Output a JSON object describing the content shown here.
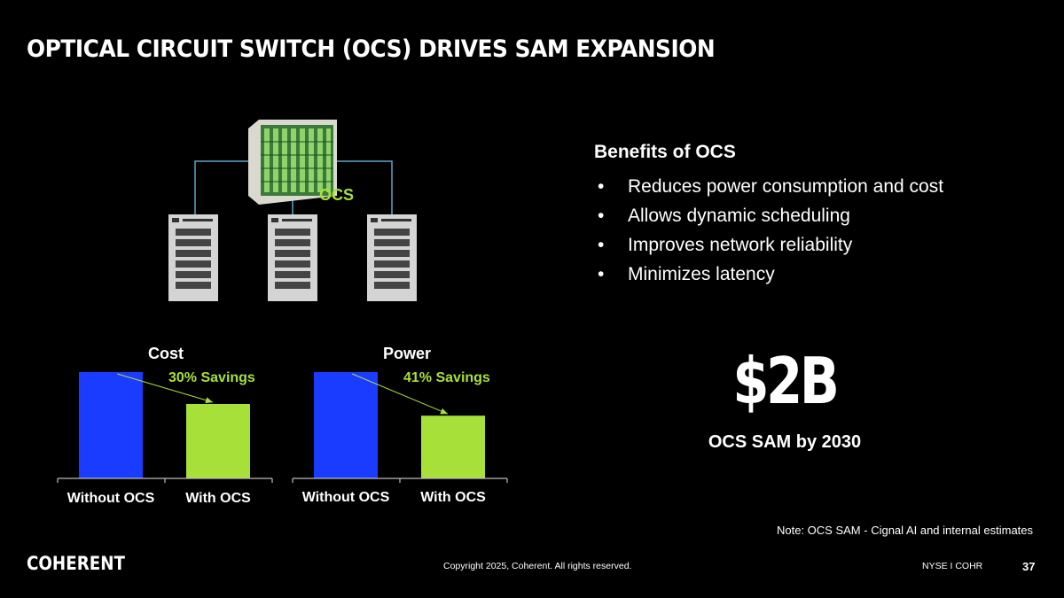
{
  "title": "OPTICAL CIRCUIT SWITCH (OCS) DRIVES SAM EXPANSION",
  "diagram": {
    "switch_label": "OCS",
    "switch_icon": "optical-switch-icon",
    "server_icon": "server-rack-icon"
  },
  "benefits": {
    "title": "Benefits of OCS",
    "items": [
      "Reduces power consumption and cost",
      "Allows dynamic scheduling",
      "Improves network reliability",
      "Minimizes latency"
    ]
  },
  "sam": {
    "value": "$2B",
    "label": "OCS SAM by 2030"
  },
  "note": "Note: OCS SAM - Cignal AI and internal estimates",
  "footer": {
    "copyright": "Copyright 2025, Coherent. All rights reserved.",
    "ticker": "NYSE I COHR",
    "page": "37",
    "logo": "COHERENT"
  },
  "colors": {
    "without": "#1a3cff",
    "with": "#a8e03a",
    "accent": "#a8e03a"
  },
  "chart_data": [
    {
      "type": "bar",
      "title": "Cost",
      "annotation": "30% Savings",
      "categories": [
        "Without OCS",
        "With OCS"
      ],
      "values": [
        100,
        70
      ],
      "ylim": [
        0,
        100
      ],
      "grid": false
    },
    {
      "type": "bar",
      "title": "Power",
      "annotation": "41% Savings",
      "categories": [
        "Without OCS",
        "With OCS"
      ],
      "values": [
        100,
        59
      ],
      "ylim": [
        0,
        100
      ],
      "grid": false
    }
  ]
}
